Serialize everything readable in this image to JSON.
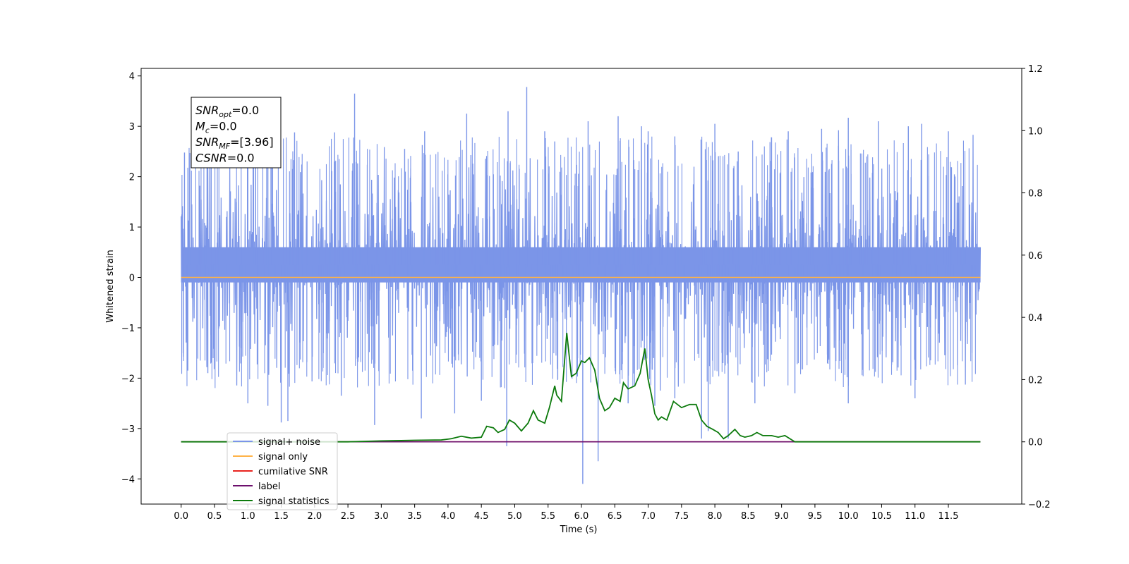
{
  "chart_data": {
    "type": "line",
    "title": "",
    "xlabel": "Time (s)",
    "ylabel": "Whitened strain",
    "xlim": [
      -0.6,
      12.6
    ],
    "ylim": [
      -4.5,
      4.15
    ],
    "ylim_right": [
      -0.2,
      1.2
    ],
    "xticks": [
      0.0,
      0.5,
      1.0,
      1.5,
      2.0,
      2.5,
      3.0,
      3.5,
      4.0,
      4.5,
      5.0,
      5.5,
      6.0,
      6.5,
      7.0,
      7.5,
      8.0,
      8.5,
      9.0,
      9.5,
      10.0,
      10.5,
      11.0,
      11.5
    ],
    "xtick_labels": [
      "0.0",
      "0.5",
      "1.0",
      "1.5",
      "2.0",
      "2.5",
      "3.0",
      "3.5",
      "4.0",
      "4.5",
      "5.0",
      "5.5",
      "6.0",
      "6.5",
      "7.0",
      "7.5",
      "8.0",
      "8.5",
      "9.0",
      "9.5",
      "10.0",
      "10.5",
      "11.0",
      "11.5"
    ],
    "yticks_left": [
      -4,
      -3,
      -2,
      -1,
      0,
      1,
      2,
      3,
      4
    ],
    "ytick_labels_left": [
      "−4",
      "−3",
      "−2",
      "−1",
      "0",
      "1",
      "2",
      "3",
      "4"
    ],
    "yticks_right": [
      -0.2,
      0.0,
      0.2,
      0.4,
      0.6,
      0.8,
      1.0,
      1.2
    ],
    "ytick_labels_right": [
      "−0.2",
      "0.0",
      "0.2",
      "0.4",
      "0.6",
      "0.8",
      "1.0",
      "1.2"
    ],
    "legend_position": "lower-left",
    "grid": false,
    "series": [
      {
        "name": "signal+ noise",
        "color": "#7b95e8",
        "axis": "left",
        "style": "noise band",
        "x_range": [
          0.0,
          11.98
        ],
        "typical_range": [
          -1.5,
          2.0
        ],
        "peaks": [
          {
            "x": 0.05,
            "y": 2.48
          },
          {
            "x": 0.45,
            "y": 2.9
          },
          {
            "x": 1.0,
            "y": 2.75
          },
          {
            "x": 1.3,
            "y": 2.93
          },
          {
            "x": 1.7,
            "y": 2.88
          },
          {
            "x": 2.3,
            "y": 2.88
          },
          {
            "x": 2.6,
            "y": 3.65
          },
          {
            "x": 3.35,
            "y": 2.55
          },
          {
            "x": 3.65,
            "y": 2.9
          },
          {
            "x": 4.28,
            "y": 3.25
          },
          {
            "x": 4.9,
            "y": 3.3
          },
          {
            "x": 5.18,
            "y": 3.78
          },
          {
            "x": 5.45,
            "y": 2.9
          },
          {
            "x": 5.6,
            "y": 2.7
          },
          {
            "x": 6.1,
            "y": 3.1
          },
          {
            "x": 6.55,
            "y": 3.2
          },
          {
            "x": 6.9,
            "y": 3.0
          },
          {
            "x": 7.0,
            "y": 2.9
          },
          {
            "x": 7.4,
            "y": 2.8
          },
          {
            "x": 8.0,
            "y": 3.05
          },
          {
            "x": 8.35,
            "y": 2.5
          },
          {
            "x": 8.85,
            "y": 2.78
          },
          {
            "x": 9.1,
            "y": 2.9
          },
          {
            "x": 9.6,
            "y": 2.95
          },
          {
            "x": 10.0,
            "y": 3.17
          },
          {
            "x": 10.45,
            "y": 3.1
          },
          {
            "x": 10.9,
            "y": 3.0
          },
          {
            "x": 11.1,
            "y": 3.05
          },
          {
            "x": 11.5,
            "y": 2.9
          }
        ],
        "troughs": [
          {
            "x": 0.1,
            "y": -1.85
          },
          {
            "x": 0.4,
            "y": -1.9
          },
          {
            "x": 1.0,
            "y": -2.5
          },
          {
            "x": 1.3,
            "y": -2.55
          },
          {
            "x": 1.5,
            "y": -2.88
          },
          {
            "x": 1.6,
            "y": -2.85
          },
          {
            "x": 2.4,
            "y": -2.35
          },
          {
            "x": 2.9,
            "y": -2.93
          },
          {
            "x": 3.6,
            "y": -2.8
          },
          {
            "x": 4.1,
            "y": -2.7
          },
          {
            "x": 4.5,
            "y": -2.45
          },
          {
            "x": 4.88,
            "y": -3.35
          },
          {
            "x": 6.02,
            "y": -4.1
          },
          {
            "x": 6.25,
            "y": -3.65
          },
          {
            "x": 6.7,
            "y": -2.5
          },
          {
            "x": 7.1,
            "y": -2.55
          },
          {
            "x": 7.4,
            "y": -2.4
          },
          {
            "x": 7.8,
            "y": -3.2
          },
          {
            "x": 7.9,
            "y": -3.05
          },
          {
            "x": 8.2,
            "y": -3.2
          },
          {
            "x": 8.6,
            "y": -2.5
          },
          {
            "x": 9.2,
            "y": -2.3
          },
          {
            "x": 10.0,
            "y": -2.5
          },
          {
            "x": 11.0,
            "y": -2.4
          }
        ]
      },
      {
        "name": "signal only",
        "color": "#ffb347",
        "axis": "left",
        "x": [
          0.0,
          11.98
        ],
        "y": [
          0.0,
          0.0
        ]
      },
      {
        "name": "cumilative SNR",
        "color": "#e8231e",
        "axis": "right",
        "x": [
          0.0,
          11.98
        ],
        "y": [
          0.0,
          0.0
        ]
      },
      {
        "name": "label",
        "color": "#6d0f6d",
        "axis": "right",
        "x": [
          0.0,
          11.98
        ],
        "y": [
          0.0,
          0.0
        ]
      },
      {
        "name": "signal statistics",
        "color": "#0c7a0c",
        "axis": "right",
        "x": [
          0.0,
          2.5,
          3.0,
          3.3,
          3.5,
          3.9,
          4.05,
          4.2,
          4.35,
          4.5,
          4.58,
          4.68,
          4.75,
          4.85,
          4.92,
          5.0,
          5.1,
          5.2,
          5.28,
          5.35,
          5.45,
          5.52,
          5.6,
          5.63,
          5.7,
          5.78,
          5.85,
          5.92,
          6.0,
          6.05,
          6.12,
          6.2,
          6.27,
          6.35,
          6.42,
          6.5,
          6.58,
          6.63,
          6.7,
          6.8,
          6.88,
          6.95,
          7.0,
          7.05,
          7.1,
          7.15,
          7.2,
          7.28,
          7.38,
          7.5,
          7.62,
          7.72,
          7.8,
          7.88,
          7.97,
          8.05,
          8.13,
          8.2,
          8.3,
          8.38,
          8.45,
          8.55,
          8.63,
          8.72,
          8.85,
          8.95,
          9.05,
          9.2,
          9.5,
          10.0,
          11.5,
          11.98
        ],
        "y": [
          0.0,
          0.0,
          0.003,
          0.004,
          0.005,
          0.006,
          0.01,
          0.018,
          0.012,
          0.015,
          0.05,
          0.045,
          0.03,
          0.04,
          0.07,
          0.06,
          0.035,
          0.06,
          0.1,
          0.07,
          0.06,
          0.11,
          0.18,
          0.15,
          0.13,
          0.35,
          0.21,
          0.22,
          0.26,
          0.255,
          0.27,
          0.23,
          0.14,
          0.1,
          0.11,
          0.14,
          0.13,
          0.19,
          0.17,
          0.18,
          0.22,
          0.3,
          0.2,
          0.15,
          0.09,
          0.07,
          0.08,
          0.07,
          0.13,
          0.11,
          0.12,
          0.12,
          0.07,
          0.05,
          0.04,
          0.03,
          0.01,
          0.02,
          0.04,
          0.02,
          0.015,
          0.02,
          0.03,
          0.02,
          0.02,
          0.015,
          0.02,
          0.0,
          0.0,
          0.0,
          0.0,
          0.0
        ]
      }
    ],
    "annotation_lines": [
      {
        "label": "SNR",
        "sub": "opt",
        "value": "=0.0"
      },
      {
        "label": "M",
        "sub": "c",
        "value": "=0.0"
      },
      {
        "label": "SNR",
        "sub": "MF",
        "value": "=[3.96]"
      },
      {
        "label": "CSNR",
        "sub": "",
        "value": "=0.0"
      }
    ]
  }
}
